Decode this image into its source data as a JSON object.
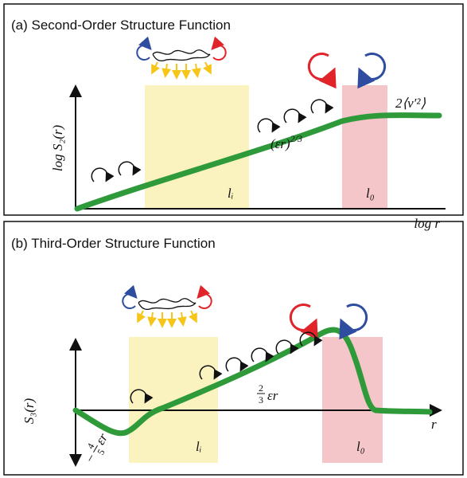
{
  "panels": [
    {
      "title": "(a) Second-Order Structure Function",
      "y_label": "log S₂(r)",
      "x_label": "log r",
      "scaling": "(εr)",
      "scaling_exp": "2/3",
      "plateau": "2⟨v′²⟩",
      "li": "lᵢ",
      "l0": "l₀"
    },
    {
      "title": "(b) Third-Order Structure Function",
      "y_label": "S₃(r)",
      "x_label": "r",
      "pos_num": "2",
      "pos_den": "3",
      "pos_term": "εr",
      "neg_sign": "−",
      "neg_num": "4",
      "neg_den": "5",
      "neg_term": "εr",
      "li": "lᵢ",
      "l0": "l₀"
    }
  ]
}
